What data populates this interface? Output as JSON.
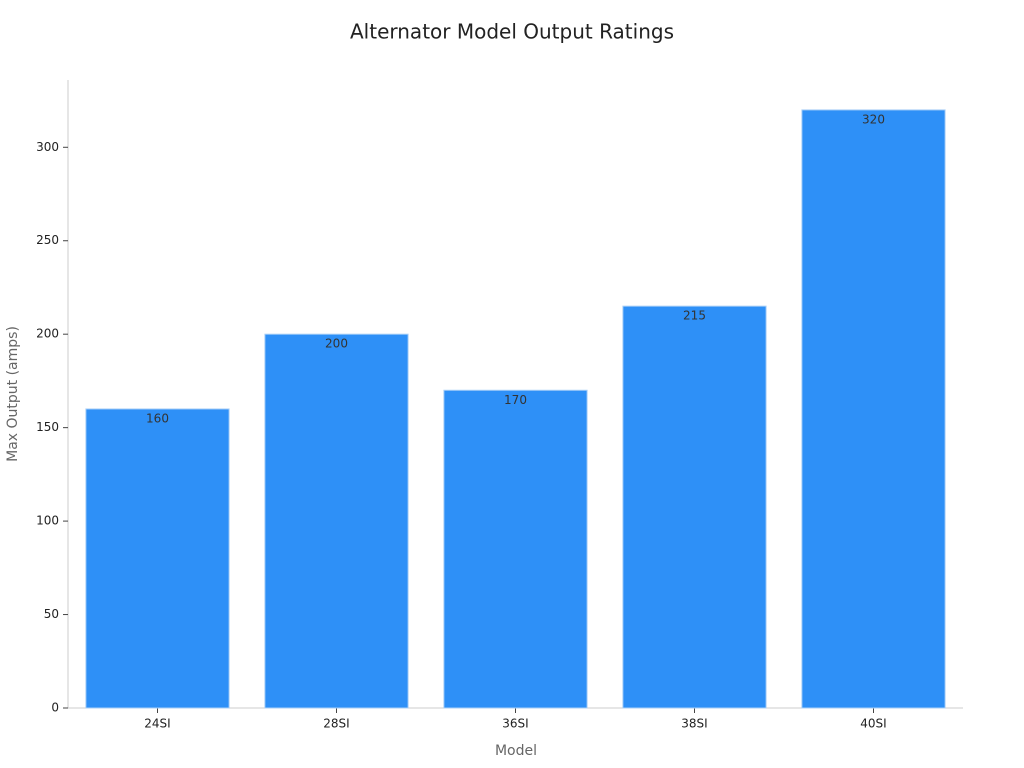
{
  "chart_data": {
    "type": "bar",
    "title": "Alternator Model Output Ratings",
    "x_label": "Model",
    "y_label": "Max Output (amps)",
    "categories": [
      "24SI",
      "28SI",
      "36SI",
      "38SI",
      "40SI"
    ],
    "values": [
      160,
      200,
      170,
      215,
      320
    ],
    "color": "#2e90f7",
    "ylim": [
      0,
      336
    ],
    "yticks": [
      0,
      50,
      100,
      150,
      200,
      250,
      300
    ],
    "grid": false
  }
}
